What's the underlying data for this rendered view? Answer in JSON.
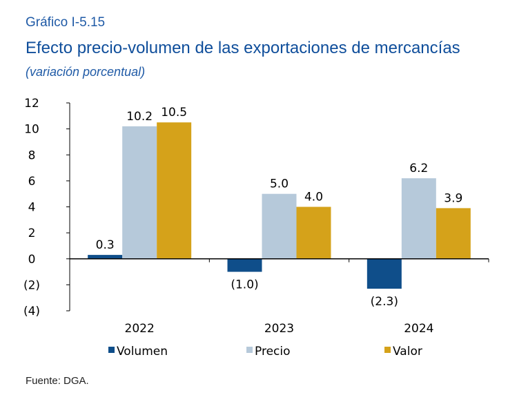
{
  "header": {
    "figure_number": "Gráfico I-5.15",
    "title": "Efecto precio-volumen de las exportaciones de mercancías",
    "subtitle": "(variación porcentual)"
  },
  "footer": {
    "source": "Fuente: DGA."
  },
  "chart_data": {
    "type": "bar",
    "categories": [
      "2022",
      "2023",
      "2024"
    ],
    "series": [
      {
        "name": "Volumen",
        "color": "#0f4e8a",
        "values": [
          0.3,
          -1.0,
          -2.3
        ],
        "labels": [
          "0.3",
          "(1.0)",
          "(2.3)"
        ]
      },
      {
        "name": "Precio",
        "color": "#b6c9da",
        "values": [
          10.2,
          5.0,
          6.2
        ],
        "labels": [
          "10.2",
          "5.0",
          "6.2"
        ]
      },
      {
        "name": "Valor",
        "color": "#d5a21a",
        "values": [
          10.5,
          4.0,
          3.9
        ],
        "labels": [
          "10.5",
          "4.0",
          "3.9"
        ]
      }
    ],
    "ylim": [
      -4,
      12
    ],
    "yticks": [
      12,
      10,
      8,
      6,
      4,
      2,
      0,
      -2,
      -4
    ],
    "ytick_labels": [
      "12",
      "10",
      "8",
      "6",
      "4",
      "2",
      "0",
      "(2)",
      "(4)"
    ],
    "grid": false,
    "legend_position": "bottom"
  }
}
